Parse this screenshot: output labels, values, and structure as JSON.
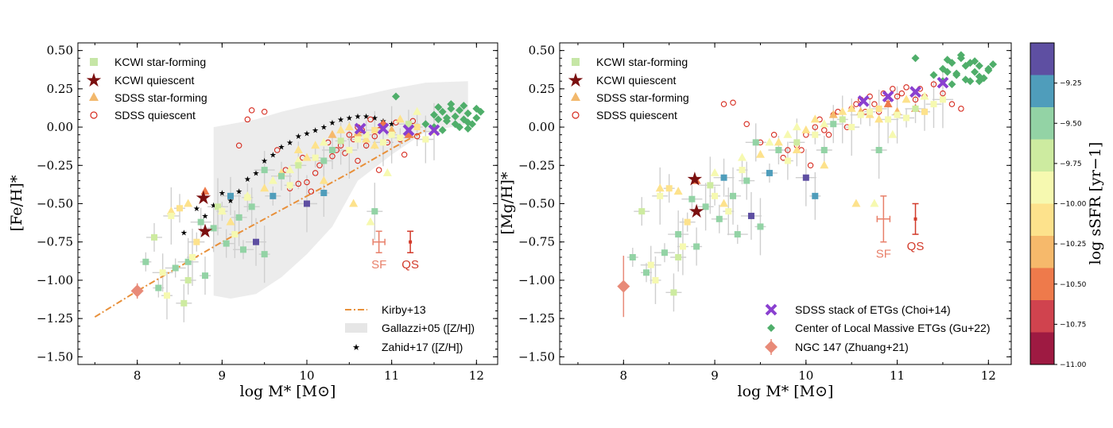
{
  "colors": {
    "kcwi_sf": "#c6e6a6",
    "kcwi_q": "#7b1010",
    "sdss_sf": "#f2b86c",
    "sdss_q": "#d62a1e",
    "kirby": "#e8903a",
    "gallazzi": "#e6e6e6",
    "choi": "#8a40d0",
    "gu": "#4fae6a",
    "ngc147": "#e88a78",
    "sf_err": "#e8806a",
    "qs_err": "#d23a2a"
  },
  "chart_data": [
    {
      "type": "scatter",
      "xlabel": "log M* [M⊙]",
      "ylabel": "[Fe/H]*",
      "xlim": [
        7.3,
        12.25
      ],
      "ylim": [
        -1.55,
        0.55
      ],
      "xticks": [
        "8",
        "9",
        "10",
        "11",
        "12"
      ],
      "xtick_values": [
        8,
        9,
        10,
        11,
        12
      ],
      "yticks": [
        "0.50",
        "0.25",
        "0.00",
        "−0.25",
        "−0.50",
        "−0.75",
        "−1.00",
        "−1.25",
        "−1.50"
      ],
      "ytick_values": [
        0.5,
        0.25,
        0.0,
        -0.25,
        -0.5,
        -0.75,
        -1.0,
        -1.25,
        -1.5
      ],
      "legend_top": [
        "KCWI star-forming",
        "KCWI quiescent",
        "SDSS star-forming",
        "SDSS quiescent"
      ],
      "legend_bottom": [
        "Kirby+13",
        "Gallazzi+05 ([Z/H])",
        "Zahid+17 ([Z/H])"
      ],
      "typical_errors": [
        {
          "label": "SF",
          "x": 10.85,
          "y": -0.75,
          "xerr": 0.07,
          "yerr": 0.07
        },
        {
          "label": "QS",
          "x": 11.22,
          "y": -0.75,
          "xerr": 0.0,
          "yerr": 0.07
        }
      ],
      "kirby": {
        "x": [
          7.5,
          8.0,
          8.5,
          9.0,
          9.5,
          10.0,
          10.5,
          11.0,
          11.4
        ],
        "y": [
          -1.24,
          -1.07,
          -0.91,
          -0.75,
          -0.6,
          -0.45,
          -0.3,
          -0.14,
          -0.02
        ]
      },
      "gallazzi": {
        "x": [
          8.9,
          9.1,
          9.4,
          9.7,
          10.0,
          10.3,
          10.6,
          11.0,
          11.4,
          11.9
        ],
        "upper": [
          0.0,
          0.02,
          0.05,
          0.1,
          0.14,
          0.17,
          0.2,
          0.25,
          0.29,
          0.3
        ],
        "lower": [
          -1.1,
          -1.12,
          -1.09,
          -0.98,
          -0.83,
          -0.65,
          -0.35,
          -0.18,
          -0.03,
          0.02
        ]
      },
      "zahid": {
        "x": [
          8.55,
          8.7,
          8.8,
          8.9,
          9.0,
          9.1,
          9.2,
          9.3,
          9.4,
          9.5,
          9.6,
          9.7,
          9.8,
          9.9,
          10.0,
          10.1,
          10.2,
          10.3,
          10.4,
          10.5,
          10.6,
          10.7,
          10.8,
          10.9,
          11.0
        ],
        "y": [
          -0.69,
          -0.53,
          -0.58,
          -0.51,
          -0.43,
          -0.48,
          -0.42,
          -0.34,
          -0.3,
          -0.22,
          -0.18,
          -0.13,
          -0.1,
          -0.06,
          -0.04,
          -0.02,
          0.0,
          0.03,
          0.05,
          0.06,
          0.07,
          0.07,
          0.06,
          0.04,
          0.02
        ]
      },
      "kcwi_quiescent": {
        "x": [
          8.78,
          8.8
        ],
        "y": [
          -0.46,
          -0.68
        ]
      },
      "kcwi_star_forming": {
        "x": [
          8.1,
          8.2,
          8.3,
          8.35,
          8.4,
          8.45,
          8.5,
          8.55,
          8.6,
          8.65,
          8.7,
          8.75,
          8.8,
          8.9,
          8.95,
          9.0,
          9.05,
          9.1,
          9.15,
          9.2,
          9.25,
          9.3,
          9.35,
          9.4,
          9.5,
          9.6,
          9.7,
          9.8,
          9.9,
          10.0,
          10.1,
          10.2,
          10.3,
          10.4,
          10.5,
          10.6,
          10.7,
          10.8,
          10.9,
          11.0,
          11.1,
          11.2,
          11.3,
          11.4,
          11.5,
          8.25,
          8.6,
          9.5,
          10.2,
          10.8
        ],
        "y": [
          -0.88,
          -0.72,
          -0.95,
          -1.1,
          -0.58,
          -0.92,
          -0.53,
          -1.15,
          -0.88,
          -0.85,
          -0.75,
          -0.62,
          -0.97,
          -0.66,
          -0.52,
          -0.55,
          -0.76,
          -0.45,
          -0.7,
          -0.59,
          -0.8,
          -0.46,
          -0.52,
          -0.75,
          -0.83,
          -0.45,
          -0.32,
          -0.38,
          -0.25,
          -0.5,
          -0.2,
          -0.22,
          -0.15,
          -0.09,
          -0.15,
          -0.08,
          -0.05,
          -0.02,
          -0.1,
          -0.05,
          -0.07,
          0.02,
          0.0,
          -0.08,
          -0.03,
          -1.05,
          -1.0,
          -0.28,
          -0.43,
          -0.55
        ],
        "levels": [
          -9.5,
          -9.7,
          -9.8,
          -9.8,
          -10.0,
          -9.6,
          -10.1,
          -9.7,
          -9.6,
          -10.0,
          -10.2,
          -9.6,
          -9.6,
          -9.4,
          -9.7,
          -9.8,
          -9.6,
          -9.3,
          -10.0,
          -9.6,
          -9.4,
          -9.8,
          -9.6,
          -9.2,
          -9.6,
          -9.3,
          -9.4,
          -9.8,
          -9.7,
          -9.2,
          -9.9,
          -9.5,
          -9.6,
          -9.7,
          -10.0,
          -9.8,
          -9.9,
          -10.1,
          -9.8,
          -10.0,
          -9.9,
          -9.7,
          -10.2,
          -9.9,
          -10.0,
          -9.6,
          -9.7,
          -9.4,
          -9.3,
          -9.6
        ]
      },
      "sdss_star_forming": {
        "x": [
          8.4,
          8.6,
          8.8,
          9.0,
          9.1,
          9.3,
          9.5,
          9.6,
          9.7,
          9.8,
          9.9,
          10.0,
          10.1,
          10.2,
          10.3,
          10.4,
          10.5,
          10.6,
          10.7,
          10.8,
          10.9,
          11.0,
          11.1,
          11.2,
          11.3,
          10.55,
          10.75,
          10.95,
          10.2,
          9.9
        ],
        "y": [
          -0.55,
          -0.5,
          -0.42,
          -0.55,
          -0.62,
          -0.45,
          -0.4,
          -0.35,
          -0.3,
          -0.28,
          -0.22,
          -0.2,
          -0.12,
          -0.1,
          -0.05,
          -0.02,
          0.0,
          -0.04,
          -0.08,
          -0.12,
          0.02,
          -0.02,
          0.05,
          -0.05,
          0.1,
          -0.5,
          -0.62,
          -0.3,
          -0.35,
          -0.15
        ],
        "levels": [
          -10.1,
          -10.2,
          -10.4,
          -10.0,
          -10.1,
          -10.0,
          -10.2,
          -10.0,
          -10.1,
          -9.9,
          -10.0,
          -10.1,
          -10.2,
          -10.0,
          -10.3,
          -10.1,
          -10.2,
          -10.3,
          -10.1,
          -10.2,
          -10.5,
          -10.3,
          -10.2,
          -10.4,
          -9.9,
          -10.1,
          -10.0,
          -10.0,
          -10.1,
          -10.2
        ]
      },
      "sdss_quiescent": {
        "x": [
          9.35,
          9.5,
          9.65,
          9.8,
          9.9,
          10.0,
          10.1,
          10.15,
          10.2,
          10.3,
          10.35,
          10.4,
          10.5,
          10.55,
          10.6,
          10.65,
          10.7,
          10.75,
          10.8,
          10.85,
          10.9,
          10.95,
          11.0,
          11.05,
          11.1,
          11.2,
          11.25,
          11.3,
          10.45,
          10.25,
          9.95,
          9.75,
          10.05,
          10.85,
          11.15,
          9.2,
          9.3,
          10.6
        ],
        "y": [
          0.11,
          0.1,
          -0.15,
          -0.4,
          -0.37,
          -0.36,
          -0.3,
          -0.25,
          -0.22,
          -0.19,
          -0.15,
          -0.12,
          -0.05,
          -0.08,
          0.0,
          -0.02,
          -0.12,
          0.05,
          -0.06,
          -0.02,
          0.02,
          -0.1,
          -0.05,
          0.03,
          -0.08,
          -0.01,
          0.04,
          -0.06,
          -0.17,
          -0.1,
          -0.2,
          -0.28,
          -0.42,
          -0.28,
          -0.18,
          -0.12,
          0.05,
          -0.22
        ]
      },
      "choi": {
        "x": [
          10.63,
          10.9,
          11.2,
          11.5
        ],
        "y": [
          -0.01,
          -0.01,
          -0.02,
          -0.02
        ]
      },
      "gu": {
        "x": [
          11.5,
          11.6,
          11.65,
          11.7,
          11.75,
          11.8,
          11.85,
          11.9,
          11.95,
          12.0,
          12.05,
          11.55,
          11.6,
          11.7,
          11.8,
          11.9,
          12.0,
          11.65,
          11.75,
          11.85,
          11.5,
          11.55,
          11.9,
          11.05,
          11.4
        ],
        "y": [
          0.08,
          0.1,
          0.04,
          0.12,
          0.07,
          0.0,
          0.05,
          0.09,
          0.02,
          0.06,
          0.1,
          0.13,
          -0.02,
          0.15,
          0.11,
          0.03,
          0.12,
          0.06,
          0.02,
          0.14,
          0.0,
          0.05,
          -0.01,
          0.2,
          0.02
        ]
      },
      "ngc147": {
        "x": 8.0,
        "y": -1.07,
        "yerr": 0.05
      }
    },
    {
      "type": "scatter",
      "xlabel": "log M* [M⊙]",
      "ylabel": "[Mg/H]*",
      "xlim": [
        7.3,
        12.25
      ],
      "ylim": [
        -1.55,
        0.55
      ],
      "xticks": [
        "8",
        "9",
        "10",
        "11",
        "12"
      ],
      "xtick_values": [
        8,
        9,
        10,
        11,
        12
      ],
      "yticks": [
        "0.50",
        "0.25",
        "0.00",
        "−0.25",
        "−0.50",
        "−0.75",
        "−1.00",
        "−1.25",
        "−1.50"
      ],
      "ytick_values": [
        0.5,
        0.25,
        0.0,
        -0.25,
        -0.5,
        -0.75,
        -1.0,
        -1.25,
        -1.5
      ],
      "legend_top": [
        "KCWI star-forming",
        "KCWI quiescent",
        "SDSS star-forming",
        "SDSS quiescent"
      ],
      "legend_bottom": [
        "SDSS stack of ETGs (Choi+14)",
        "Center of Local Massive ETGs (Gu+22)",
        "NGC 147 (Zhuang+21)"
      ],
      "typical_errors": [
        {
          "label": "SF",
          "x": 10.85,
          "y": -0.6,
          "xerr": 0.07,
          "yerr": 0.15
        },
        {
          "label": "QS",
          "x": 11.2,
          "y": -0.6,
          "xerr": 0.0,
          "yerr": 0.1
        }
      ],
      "kcwi_quiescent": {
        "x": [
          8.78,
          8.8
        ],
        "y": [
          -0.34,
          -0.55
        ]
      },
      "kcwi_star_forming": {
        "x": [
          8.1,
          8.2,
          8.3,
          8.35,
          8.4,
          8.45,
          8.5,
          8.55,
          8.6,
          8.65,
          8.7,
          8.75,
          8.8,
          8.9,
          8.95,
          9.0,
          9.05,
          9.1,
          9.15,
          9.2,
          9.25,
          9.3,
          9.35,
          9.4,
          9.5,
          9.6,
          9.7,
          9.8,
          9.9,
          10.0,
          10.1,
          10.2,
          10.3,
          10.4,
          10.5,
          10.6,
          10.7,
          10.8,
          10.9,
          11.0,
          11.1,
          11.2,
          11.3,
          11.4,
          11.5,
          8.25,
          8.6,
          9.45,
          10.1,
          10.8
        ],
        "y": [
          -0.85,
          -0.55,
          -0.9,
          -1.0,
          -0.45,
          -0.82,
          -0.4,
          -1.08,
          -0.7,
          -0.78,
          -0.62,
          -0.47,
          -0.78,
          -0.52,
          -0.38,
          -0.45,
          -0.6,
          -0.33,
          -0.55,
          -0.45,
          -0.7,
          -0.28,
          -0.35,
          -0.58,
          -0.65,
          -0.3,
          -0.15,
          -0.22,
          -0.1,
          -0.33,
          -0.05,
          -0.15,
          0.02,
          0.05,
          0.0,
          0.08,
          0.1,
          0.12,
          0.05,
          0.08,
          0.06,
          0.12,
          0.1,
          0.15,
          0.18,
          -0.95,
          -0.85,
          -0.1,
          -0.45,
          -0.15
        ],
        "levels": [
          -9.5,
          -9.7,
          -9.8,
          -9.8,
          -10.0,
          -9.6,
          -10.1,
          -9.7,
          -9.6,
          -10.0,
          -10.2,
          -9.6,
          -9.6,
          -9.4,
          -9.7,
          -9.8,
          -9.6,
          -9.3,
          -10.0,
          -9.6,
          -9.4,
          -9.8,
          -9.6,
          -9.2,
          -9.6,
          -9.3,
          -9.4,
          -9.8,
          -9.7,
          -9.2,
          -9.9,
          -9.5,
          -9.6,
          -9.7,
          -10.0,
          -9.8,
          -9.9,
          -10.1,
          -9.8,
          -10.0,
          -9.9,
          -9.7,
          -10.2,
          -9.9,
          -10.0,
          -9.6,
          -9.7,
          -9.4,
          -9.3,
          -9.6
        ]
      },
      "sdss_star_forming": {
        "x": [
          8.4,
          8.6,
          8.8,
          9.0,
          9.1,
          9.3,
          9.5,
          9.6,
          9.7,
          9.8,
          9.9,
          10.0,
          10.1,
          10.2,
          10.3,
          10.4,
          10.5,
          10.6,
          10.7,
          10.8,
          10.9,
          11.0,
          11.1,
          11.2,
          11.3,
          10.55,
          10.75,
          10.95,
          10.2,
          9.9
        ],
        "y": [
          -0.4,
          -0.42,
          -0.35,
          -0.3,
          -0.5,
          -0.2,
          -0.18,
          -0.1,
          -0.1,
          -0.05,
          0.0,
          -0.02,
          0.05,
          0.02,
          0.08,
          0.1,
          0.12,
          0.1,
          0.08,
          0.05,
          0.15,
          0.1,
          0.18,
          0.12,
          0.2,
          -0.5,
          -0.5,
          -0.05,
          -0.25,
          -0.15
        ],
        "levels": [
          -10.1,
          -10.2,
          -10.4,
          -10.0,
          -10.1,
          -10.0,
          -10.2,
          -10.0,
          -10.1,
          -9.9,
          -10.0,
          -10.1,
          -10.2,
          -10.0,
          -10.3,
          -10.1,
          -10.2,
          -10.3,
          -10.1,
          -10.2,
          -10.5,
          -10.3,
          -10.2,
          -10.4,
          -9.9,
          -10.1,
          -10.0,
          -10.0,
          -10.1,
          -10.2
        ]
      },
      "sdss_quiescent": {
        "x": [
          9.1,
          9.2,
          9.35,
          9.5,
          9.65,
          9.8,
          9.9,
          10.0,
          10.1,
          10.15,
          10.2,
          10.3,
          10.35,
          10.4,
          10.5,
          10.55,
          10.6,
          10.65,
          10.7,
          10.75,
          10.8,
          10.85,
          10.9,
          10.95,
          11.0,
          11.05,
          11.1,
          11.2,
          11.25,
          11.3,
          11.4,
          11.5,
          11.6,
          11.7,
          10.45,
          10.25,
          9.95,
          9.75,
          10.05
        ],
        "y": [
          0.15,
          0.16,
          0.02,
          -0.1,
          -0.05,
          -0.15,
          -0.12,
          -0.05,
          0.0,
          0.05,
          -0.02,
          0.08,
          0.1,
          0.05,
          0.12,
          0.15,
          0.18,
          0.1,
          0.2,
          0.15,
          0.1,
          0.22,
          0.18,
          0.25,
          0.2,
          0.22,
          0.26,
          0.18,
          0.25,
          0.2,
          0.28,
          0.22,
          0.15,
          0.12,
          0.0,
          -0.05,
          -0.15,
          -0.2,
          -0.25
        ]
      },
      "choi": {
        "x": [
          10.63,
          10.9,
          11.2,
          11.5
        ],
        "y": [
          0.17,
          0.2,
          0.23,
          0.29
        ]
      },
      "gu": {
        "x": [
          11.5,
          11.6,
          11.65,
          11.7,
          11.75,
          11.8,
          11.85,
          11.9,
          11.95,
          12.0,
          12.05,
          11.55,
          11.6,
          11.7,
          11.8,
          11.9,
          12.0,
          11.65,
          11.75,
          11.85,
          11.5,
          11.55,
          11.9,
          11.2,
          11.4
        ],
        "y": [
          0.38,
          0.42,
          0.35,
          0.45,
          0.4,
          0.3,
          0.36,
          0.4,
          0.32,
          0.38,
          0.41,
          0.44,
          0.28,
          0.47,
          0.42,
          0.33,
          0.37,
          0.34,
          0.31,
          0.43,
          0.3,
          0.36,
          0.3,
          0.45,
          0.34
        ]
      },
      "ngc147": {
        "x": 8.0,
        "y": -1.04,
        "yerr": 0.2
      }
    }
  ],
  "colorbar": {
    "label": "log sSFR [yr−1]",
    "ticks": [
      "−9.25",
      "−9.50",
      "−9.75",
      "−10.00",
      "−10.25",
      "−10.50",
      "−10.75",
      "−11.00"
    ],
    "tick_values": [
      -9.25,
      -9.5,
      -9.75,
      -10.0,
      -10.25,
      -10.5,
      -10.75,
      -11.0
    ],
    "min": -11.0,
    "max": -9.0,
    "bands": [
      "#9e1a42",
      "#d0434e",
      "#ee7a4b",
      "#f6b96b",
      "#fde28c",
      "#f6f9b0",
      "#cdebA0",
      "#93d3a5",
      "#4f9dbb",
      "#5e4fa2"
    ]
  }
}
